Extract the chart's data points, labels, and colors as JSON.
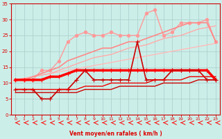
{
  "background_color": "#cceee8",
  "grid_color": "#aacccc",
  "xlabel": "Vent moyen/en rafales ( km/h )",
  "xlim": [
    -0.5,
    23.5
  ],
  "ylim": [
    0,
    35
  ],
  "xticks": [
    0,
    1,
    2,
    3,
    4,
    5,
    6,
    7,
    8,
    9,
    10,
    11,
    12,
    13,
    14,
    15,
    16,
    17,
    18,
    19,
    20,
    21,
    22,
    23
  ],
  "yticks": [
    0,
    5,
    10,
    15,
    20,
    25,
    30,
    35
  ],
  "series": [
    {
      "x": [
        0,
        1,
        2,
        3,
        4,
        5,
        6,
        7,
        8,
        9,
        10,
        11,
        12,
        13,
        14,
        15,
        16,
        17,
        18,
        19,
        20,
        21,
        22,
        23
      ],
      "y": [
        11,
        11.5,
        12,
        12.5,
        13,
        13.5,
        14,
        14.5,
        15,
        15.5,
        16,
        16.5,
        17,
        17.5,
        18,
        18.5,
        19,
        19.5,
        20,
        20.5,
        21,
        21.5,
        22,
        22.5
      ],
      "color": "#ffbbbb",
      "lw": 1.0,
      "marker": null
    },
    {
      "x": [
        0,
        1,
        2,
        3,
        4,
        5,
        6,
        7,
        8,
        9,
        10,
        11,
        12,
        13,
        14,
        15,
        16,
        17,
        18,
        19,
        20,
        21,
        22,
        23
      ],
      "y": [
        11,
        11.5,
        12,
        12.5,
        13,
        14,
        15,
        16,
        17,
        18,
        18.5,
        19,
        20,
        21,
        21.5,
        22,
        23,
        24,
        24.5,
        25,
        26,
        27,
        27.5,
        28
      ],
      "color": "#ffaaaa",
      "lw": 1.0,
      "marker": null
    },
    {
      "x": [
        0,
        1,
        2,
        3,
        4,
        5,
        6,
        7,
        8,
        9,
        10,
        11,
        12,
        13,
        14,
        15,
        16,
        17,
        18,
        19,
        20,
        21,
        22,
        23
      ],
      "y": [
        11,
        11,
        11,
        14,
        14,
        17,
        23,
        25,
        26,
        25,
        25,
        26,
        25,
        25,
        25,
        32,
        33,
        25,
        26,
        29,
        29,
        29,
        30,
        23
      ],
      "color": "#ff9999",
      "lw": 1.0,
      "marker": "o",
      "ms": 3
    },
    {
      "x": [
        0,
        1,
        2,
        3,
        4,
        5,
        6,
        7,
        8,
        9,
        10,
        11,
        12,
        13,
        14,
        15,
        16,
        17,
        18,
        19,
        20,
        21,
        22,
        23
      ],
      "y": [
        11,
        11,
        12,
        13,
        14,
        15,
        17,
        18,
        19,
        20,
        21,
        21,
        22,
        23,
        23,
        24,
        25,
        26,
        27,
        28,
        29,
        29,
        29,
        23
      ],
      "color": "#ff8888",
      "lw": 1.2,
      "marker": null
    },
    {
      "x": [
        0,
        1,
        2,
        3,
        4,
        5,
        6,
        7,
        8,
        9,
        10,
        11,
        12,
        13,
        14,
        15,
        16,
        17,
        18,
        19,
        20,
        21,
        22,
        23
      ],
      "y": [
        11,
        11,
        11,
        11,
        12,
        12,
        13,
        14,
        14,
        14,
        14,
        14,
        14,
        14,
        14,
        14,
        14,
        14,
        14,
        14,
        14,
        14,
        14,
        11
      ],
      "color": "#ff0000",
      "lw": 2.5,
      "marker": "+",
      "ms": 4
    },
    {
      "x": [
        0,
        1,
        2,
        3,
        4,
        5,
        6,
        7,
        8,
        9,
        10,
        11,
        12,
        13,
        14,
        15,
        16,
        17,
        18,
        19,
        20,
        21,
        22,
        23
      ],
      "y": [
        8,
        8,
        8,
        5,
        5,
        8,
        8,
        11,
        14,
        11,
        11,
        11,
        11,
        11,
        23,
        11,
        11,
        11,
        14,
        14,
        14,
        14,
        11,
        11
      ],
      "color": "#cc0000",
      "lw": 1.2,
      "marker": "+",
      "ms": 4
    },
    {
      "x": [
        0,
        1,
        2,
        3,
        4,
        5,
        6,
        7,
        8,
        9,
        10,
        11,
        12,
        13,
        14,
        15,
        16,
        17,
        18,
        19,
        20,
        21,
        22,
        23
      ],
      "y": [
        8,
        8,
        8,
        8,
        8,
        8,
        8,
        8,
        9,
        9,
        9,
        10,
        10,
        10,
        10,
        10,
        11,
        11,
        11,
        11,
        12,
        12,
        12,
        12
      ],
      "color": "#ee0000",
      "lw": 1.0,
      "marker": null
    },
    {
      "x": [
        0,
        1,
        2,
        3,
        4,
        5,
        6,
        7,
        8,
        9,
        10,
        11,
        12,
        13,
        14,
        15,
        16,
        17,
        18,
        19,
        20,
        21,
        22,
        23
      ],
      "y": [
        7,
        7,
        7,
        7,
        7,
        7,
        7,
        7,
        8,
        8,
        8,
        8,
        9,
        9,
        9,
        9,
        9,
        10,
        10,
        10,
        10,
        11,
        11,
        11
      ],
      "color": "#cc0000",
      "lw": 1.0,
      "marker": null
    }
  ]
}
